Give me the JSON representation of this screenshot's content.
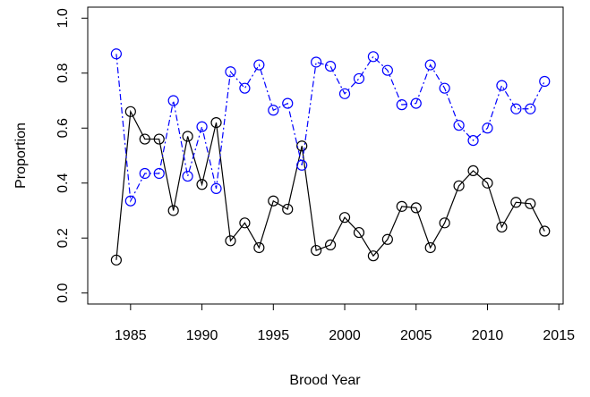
{
  "chart_data": {
    "type": "line",
    "x_label": "Brood Year",
    "y_label": "Proportion",
    "x": [
      1984,
      1985,
      1986,
      1987,
      1988,
      1989,
      1990,
      1991,
      1992,
      1993,
      1994,
      1995,
      1996,
      1997,
      1998,
      1999,
      2000,
      2001,
      2002,
      2003,
      2004,
      2005,
      2006,
      2007,
      2008,
      2009,
      2010,
      2011,
      2012,
      2013,
      2014
    ],
    "series": [
      {
        "color": "#000000",
        "line_style": "solid",
        "marker": "open-circle",
        "values": [
          0.12,
          0.66,
          0.56,
          0.56,
          0.3,
          0.57,
          0.395,
          0.62,
          0.19,
          0.255,
          0.165,
          0.335,
          0.305,
          0.535,
          0.155,
          0.175,
          0.275,
          0.22,
          0.135,
          0.195,
          0.315,
          0.31,
          0.165,
          0.255,
          0.39,
          0.445,
          0.4,
          0.24,
          0.33,
          0.325,
          0.225
        ]
      },
      {
        "color": "#0000ff",
        "line_style": "dashdot",
        "marker": "open-circle",
        "values": [
          0.87,
          0.335,
          0.435,
          0.435,
          0.7,
          0.425,
          0.605,
          0.38,
          0.805,
          0.745,
          0.83,
          0.665,
          0.69,
          0.465,
          0.84,
          0.825,
          0.725,
          0.78,
          0.86,
          0.81,
          0.685,
          0.69,
          0.83,
          0.745,
          0.61,
          0.555,
          0.6,
          0.755,
          0.67,
          0.67,
          0.77
        ]
      }
    ],
    "xlim": [
      1982,
      2015.3
    ],
    "xticks": [
      1985,
      1990,
      1995,
      2000,
      2005,
      2010,
      2015
    ],
    "ylim": [
      -0.04,
      1.04
    ],
    "yticks": [
      {
        "value": 0,
        "label": "0.0"
      },
      {
        "value": 0.2,
        "label": "0.2"
      },
      {
        "value": 0.4,
        "label": "0.4"
      },
      {
        "value": 0.6,
        "label": "0.6"
      },
      {
        "value": 0.8,
        "label": "0.8"
      },
      {
        "value": 1,
        "label": "1.0"
      }
    ],
    "grid": false
  }
}
